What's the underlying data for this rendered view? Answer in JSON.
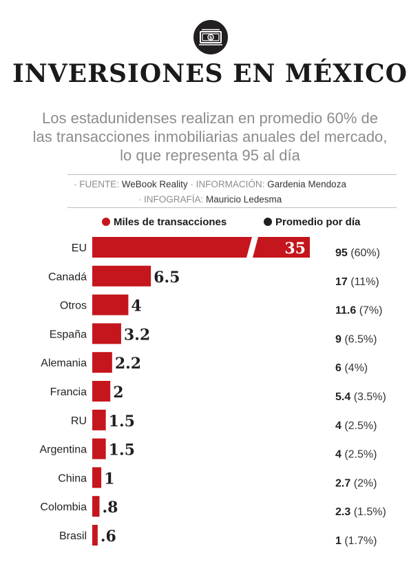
{
  "header": {
    "title": "INVERSIONES EN MÉXICO",
    "subtitle_lines": [
      "Los estadunidenses realizan en promedio 60% de",
      "las transacciones inmobiliarias anuales del mercado,",
      "lo que representa 95 al día"
    ],
    "logo_icon": "dollar-bill-icon"
  },
  "credits": {
    "fuente_label": "· FUENTE:",
    "fuente_value": "WeBook Reality",
    "info_label": "· INFORMACIÓN:",
    "info_value": "Gardenia Mendoza",
    "infografia_label": "· INFOGRAFÍA:",
    "infografia_value": "Mauricio Ledesma"
  },
  "legend": {
    "miles": "Miles de transacciones",
    "promedio": "Promedio por día"
  },
  "colors": {
    "bar": "#c4161c",
    "text": "#231f20",
    "muted": "#8c8c8c"
  },
  "chart_data": {
    "type": "bar",
    "orientation": "horizontal",
    "axis_break_on_first_bar": true,
    "categories": [
      "EU",
      "Canadá",
      "Otros",
      "España",
      "Alemania",
      "Francia",
      "RU",
      "Argentina",
      "China",
      "Colombia",
      "Brasil"
    ],
    "series": [
      {
        "name": "Miles de transacciones",
        "values": [
          35,
          6.5,
          4,
          3.2,
          2.2,
          2,
          1.5,
          1.5,
          1,
          0.8,
          0.6
        ],
        "labels": [
          "35",
          "6.5",
          "4",
          "3.2",
          "2.2",
          "2",
          "1.5",
          "1.5",
          "1",
          ".8",
          ".6"
        ]
      },
      {
        "name": "Promedio por día",
        "values": [
          95,
          17,
          11.6,
          9,
          6,
          5.4,
          4,
          4,
          2.7,
          2.3,
          1
        ],
        "shares": [
          "(60%)",
          "(11%)",
          "(7%)",
          "(6.5%)",
          "(4%)",
          "(3.5%)",
          "(2.5%)",
          "(2.5%)",
          "(2%)",
          "(1.5%)",
          "(1.7%)"
        ],
        "labels": [
          "95",
          "17",
          "11.6",
          "9",
          "6",
          "5.4",
          "4",
          "4",
          "2.7",
          "2.3",
          "1"
        ]
      }
    ]
  }
}
